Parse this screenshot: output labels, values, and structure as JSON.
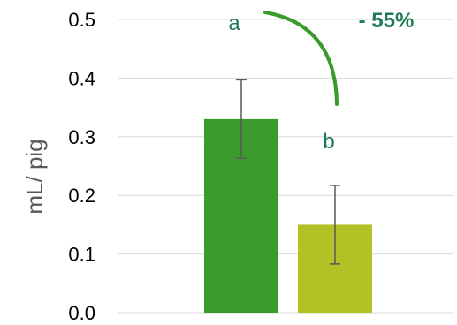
{
  "chart_data": {
    "type": "bar",
    "title": "",
    "xlabel": "",
    "ylabel": "mL/ pig",
    "ylim": [
      0,
      0.5
    ],
    "yticks": [
      "0.0",
      "0.1",
      "0.2",
      "0.3",
      "0.4",
      "0.5"
    ],
    "grid": true,
    "legend": "none",
    "bars": [
      {
        "value": 0.33,
        "error": 0.067,
        "color": "#3A9A2C",
        "letter": "a",
        "letter_color": "#1E7A54"
      },
      {
        "value": 0.15,
        "error": 0.067,
        "color": "#B2C225",
        "letter": "b",
        "letter_color": "#1E7A54"
      }
    ],
    "annotation": {
      "text": "- 55%",
      "color": "#1E7A54",
      "arrow_color": "#3A9A2C"
    }
  }
}
